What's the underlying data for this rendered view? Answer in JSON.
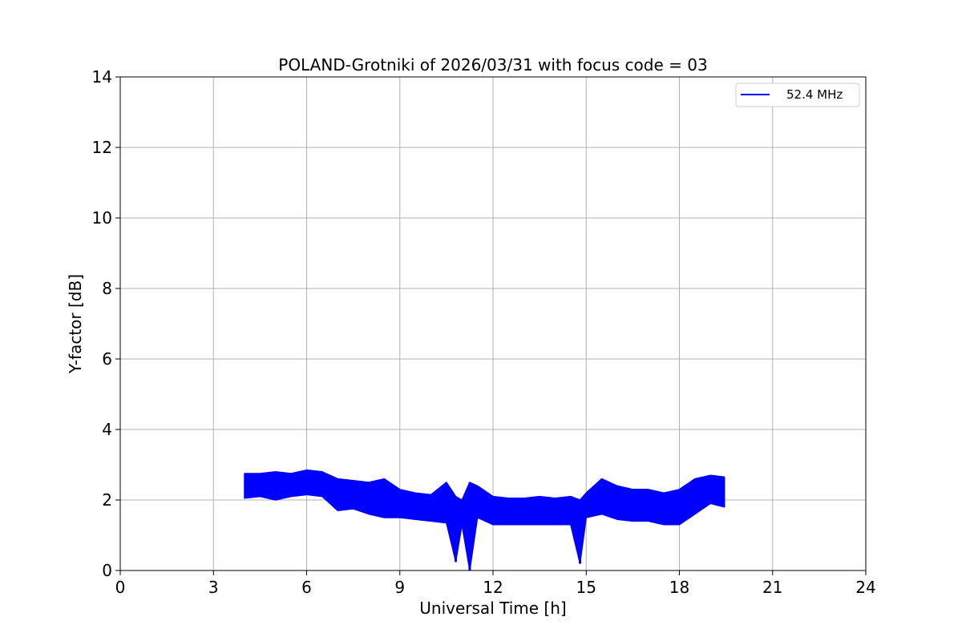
{
  "chart_data": {
    "type": "line",
    "title": "POLAND-Grotniki of 2026/03/31 with focus code = 03",
    "xlabel": "Universal Time [h]",
    "ylabel": "Y-factor [dB]",
    "xlim": [
      0,
      24
    ],
    "ylim": [
      0,
      14
    ],
    "xticks": [
      0,
      3,
      6,
      9,
      12,
      15,
      18,
      21,
      24
    ],
    "yticks": [
      0,
      2,
      4,
      6,
      8,
      10,
      12,
      14
    ],
    "grid": true,
    "legend_position": "top-right",
    "series": [
      {
        "name": "52.4 MHz",
        "color": "#0000ff",
        "x": [
          4.0,
          4.5,
          5.0,
          5.5,
          6.0,
          6.5,
          7.0,
          7.5,
          8.0,
          8.5,
          9.0,
          9.5,
          10.0,
          10.5,
          10.8,
          11.0,
          11.25,
          11.5,
          12.0,
          12.5,
          13.0,
          13.5,
          14.0,
          14.5,
          14.8,
          15.0,
          15.5,
          16.0,
          16.5,
          17.0,
          17.5,
          18.0,
          18.5,
          19.0,
          19.45
        ],
        "min": [
          2.05,
          2.1,
          2.0,
          2.1,
          2.15,
          2.1,
          1.7,
          1.75,
          1.6,
          1.5,
          1.5,
          1.45,
          1.4,
          1.35,
          0.25,
          1.3,
          0.0,
          1.5,
          1.3,
          1.3,
          1.3,
          1.3,
          1.3,
          1.3,
          0.2,
          1.5,
          1.6,
          1.45,
          1.4,
          1.4,
          1.3,
          1.3,
          1.6,
          1.9,
          1.8
        ],
        "max": [
          2.75,
          2.75,
          2.8,
          2.75,
          2.85,
          2.8,
          2.6,
          2.55,
          2.5,
          2.6,
          2.3,
          2.2,
          2.15,
          2.5,
          2.1,
          2.0,
          2.5,
          2.4,
          2.1,
          2.05,
          2.05,
          2.1,
          2.05,
          2.1,
          2.0,
          2.2,
          2.6,
          2.4,
          2.3,
          2.3,
          2.2,
          2.3,
          2.6,
          2.7,
          2.65
        ]
      }
    ]
  }
}
